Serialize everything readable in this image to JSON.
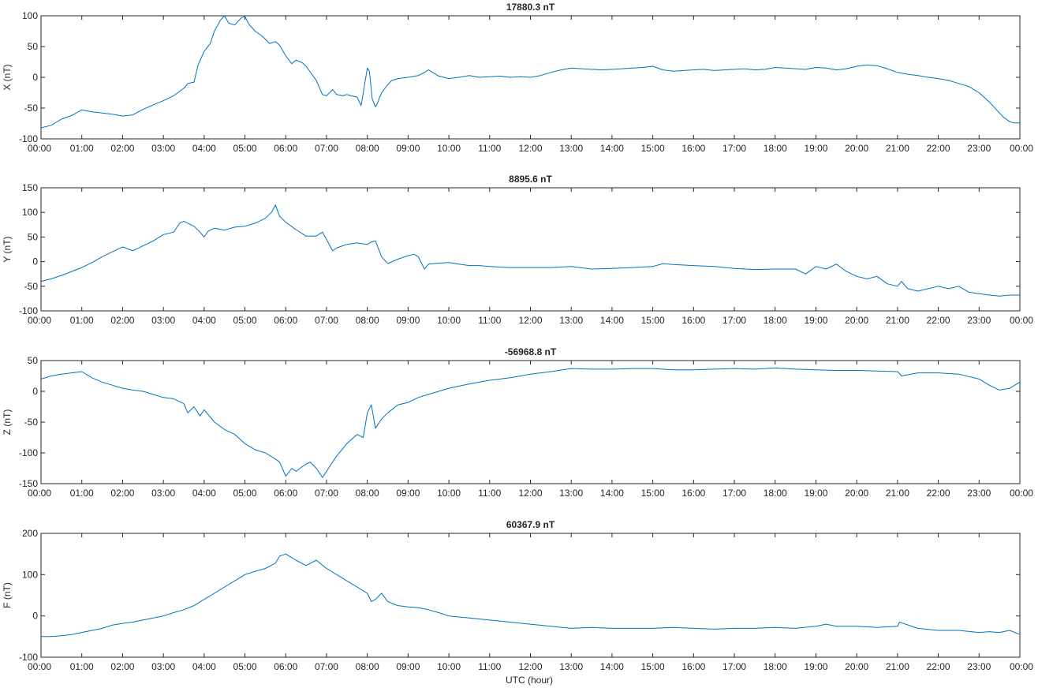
{
  "figure": {
    "xlabel": "UTC (hour)"
  },
  "colors": {
    "series": "#0072bd",
    "axes": "#262626",
    "background": "#ffffff"
  },
  "chart_data": [
    {
      "type": "line",
      "title": "17880.3 nT",
      "ylabel": "X (nT)",
      "xlabel": "",
      "xlim": [
        0,
        24
      ],
      "ylim": [
        -100,
        100
      ],
      "yticks": [
        -100,
        -50,
        0,
        50,
        100
      ],
      "xtick_labels": [
        "00:00",
        "01:00",
        "02:00",
        "03:00",
        "04:00",
        "05:00",
        "06:00",
        "07:00",
        "08:00",
        "09:00",
        "10:00",
        "11:00",
        "12:00",
        "13:00",
        "14:00",
        "15:00",
        "16:00",
        "17:00",
        "18:00",
        "19:00",
        "20:00",
        "21:00",
        "22:00",
        "23:00",
        "00:00"
      ],
      "grid": false,
      "series": [
        {
          "x": [
            0,
            0.25,
            0.5,
            0.75,
            1,
            1.25,
            1.5,
            1.75,
            2,
            2.25,
            2.5,
            2.75,
            3,
            3.25,
            3.5,
            3.6,
            3.75,
            3.85,
            4,
            4.15,
            4.25,
            4.4,
            4.5,
            4.6,
            4.75,
            4.9,
            5,
            5.1,
            5.25,
            5.4,
            5.5,
            5.6,
            5.75,
            5.85,
            6,
            6.15,
            6.25,
            6.4,
            6.5,
            6.75,
            6.9,
            7,
            7.15,
            7.25,
            7.4,
            7.5,
            7.6,
            7.75,
            7.85,
            7.95,
            8,
            8.05,
            8.12,
            8.2,
            8.25,
            8.35,
            8.5,
            8.6,
            8.75,
            9,
            9.25,
            9.4,
            9.5,
            9.75,
            10,
            10.25,
            10.5,
            10.75,
            11,
            11.25,
            11.5,
            11.75,
            12,
            12.25,
            12.5,
            12.75,
            13,
            13.25,
            13.5,
            13.75,
            14,
            14.25,
            14.5,
            14.75,
            15,
            15.25,
            15.5,
            15.75,
            16,
            16.25,
            16.5,
            16.75,
            17,
            17.25,
            17.5,
            17.75,
            18,
            18.25,
            18.5,
            18.75,
            19,
            19.25,
            19.5,
            19.75,
            20,
            20.25,
            20.5,
            20.75,
            21,
            21.25,
            21.5,
            21.75,
            22,
            22.25,
            22.5,
            22.75,
            23,
            23.25,
            23.5,
            23.6,
            23.75,
            23.85,
            24
          ],
          "y": [
            -82,
            -78,
            -68,
            -62,
            -53,
            -56,
            -58,
            -60,
            -63,
            -61,
            -52,
            -45,
            -38,
            -30,
            -18,
            -10,
            -8,
            20,
            42,
            55,
            75,
            93,
            100,
            88,
            85,
            96,
            99,
            86,
            75,
            68,
            62,
            55,
            58,
            52,
            35,
            22,
            28,
            24,
            18,
            -5,
            -28,
            -30,
            -20,
            -28,
            -30,
            -28,
            -30,
            -32,
            -46,
            -5,
            15,
            10,
            -35,
            -48,
            -42,
            -25,
            -12,
            -5,
            -2,
            0,
            3,
            8,
            12,
            2,
            -2,
            0,
            3,
            0,
            1,
            2,
            0,
            1,
            0,
            3,
            8,
            12,
            15,
            14,
            13,
            12,
            13,
            14,
            15,
            16,
            18,
            12,
            10,
            11,
            12,
            13,
            11,
            12,
            13,
            14,
            12,
            13,
            16,
            15,
            14,
            13,
            16,
            15,
            12,
            14,
            18,
            20,
            19,
            14,
            8,
            5,
            3,
            0,
            -2,
            -5,
            -10,
            -15,
            -25,
            -40,
            -58,
            -65,
            -72,
            -74,
            -74
          ]
        }
      ]
    },
    {
      "type": "line",
      "title": "8895.6 nT",
      "ylabel": "Y (nT)",
      "xlabel": "",
      "xlim": [
        0,
        24
      ],
      "ylim": [
        -100,
        150
      ],
      "yticks": [
        -100,
        -50,
        0,
        50,
        100,
        150
      ],
      "xtick_labels": [
        "00:00",
        "01:00",
        "02:00",
        "03:00",
        "04:00",
        "05:00",
        "06:00",
        "07:00",
        "08:00",
        "09:00",
        "10:00",
        "11:00",
        "12:00",
        "13:00",
        "14:00",
        "15:00",
        "16:00",
        "17:00",
        "18:00",
        "19:00",
        "20:00",
        "21:00",
        "22:00",
        "23:00",
        "00:00"
      ],
      "grid": false,
      "series": [
        {
          "x": [
            0,
            0.25,
            0.5,
            0.75,
            1,
            1.25,
            1.5,
            1.75,
            2,
            2.25,
            2.5,
            2.75,
            3,
            3.25,
            3.4,
            3.5,
            3.75,
            3.9,
            4,
            4.1,
            4.25,
            4.5,
            4.75,
            5,
            5.25,
            5.5,
            5.65,
            5.75,
            5.85,
            6,
            6.25,
            6.5,
            6.75,
            6.9,
            7,
            7.15,
            7.25,
            7.5,
            7.75,
            8,
            8.1,
            8.2,
            8.35,
            8.5,
            8.75,
            9,
            9.15,
            9.25,
            9.4,
            9.5,
            9.75,
            10,
            10.25,
            10.5,
            10.75,
            11,
            11.5,
            12,
            12.5,
            13,
            13.5,
            14,
            14.5,
            15,
            15.25,
            15.5,
            16,
            16.5,
            17,
            17.5,
            18,
            18.5,
            18.75,
            19,
            19.25,
            19.5,
            19.75,
            20,
            20.25,
            20.5,
            20.75,
            21,
            21.1,
            21.25,
            21.5,
            22,
            22.25,
            22.5,
            22.75,
            23,
            23.25,
            23.5,
            23.75,
            24
          ],
          "y": [
            -40,
            -35,
            -28,
            -20,
            -12,
            -2,
            10,
            20,
            30,
            22,
            32,
            42,
            55,
            60,
            78,
            82,
            72,
            60,
            50,
            62,
            68,
            64,
            70,
            72,
            78,
            88,
            100,
            115,
            92,
            80,
            65,
            52,
            52,
            60,
            45,
            22,
            28,
            35,
            38,
            35,
            40,
            42,
            10,
            -4,
            5,
            12,
            15,
            10,
            -15,
            -5,
            -3,
            -2,
            -5,
            -8,
            -8,
            -10,
            -12,
            -12,
            -12,
            -10,
            -15,
            -14,
            -12,
            -10,
            -4,
            -6,
            -8,
            -10,
            -14,
            -16,
            -15,
            -15,
            -25,
            -10,
            -15,
            -5,
            -20,
            -30,
            -35,
            -30,
            -45,
            -50,
            -40,
            -55,
            -60,
            -50,
            -55,
            -50,
            -62,
            -65,
            -68,
            -70,
            -68,
            -68
          ]
        }
      ]
    },
    {
      "type": "line",
      "title": "-56968.8 nT",
      "ylabel": "Z (nT)",
      "xlabel": "",
      "xlim": [
        0,
        24
      ],
      "ylim": [
        -150,
        50
      ],
      "yticks": [
        -150,
        -100,
        -50,
        0,
        50
      ],
      "xtick_labels": [
        "00:00",
        "01:00",
        "02:00",
        "03:00",
        "04:00",
        "05:00",
        "06:00",
        "07:00",
        "08:00",
        "09:00",
        "10:00",
        "11:00",
        "12:00",
        "13:00",
        "14:00",
        "15:00",
        "16:00",
        "17:00",
        "18:00",
        "19:00",
        "20:00",
        "21:00",
        "22:00",
        "23:00",
        "00:00"
      ],
      "grid": false,
      "series": [
        {
          "x": [
            0,
            0.25,
            0.5,
            0.75,
            1,
            1.25,
            1.5,
            1.75,
            2,
            2.25,
            2.5,
            2.75,
            3,
            3.25,
            3.5,
            3.6,
            3.75,
            3.9,
            4,
            4.25,
            4.5,
            4.75,
            5,
            5.25,
            5.5,
            5.75,
            5.85,
            6,
            6.15,
            6.25,
            6.5,
            6.6,
            6.75,
            6.9,
            7,
            7.15,
            7.25,
            7.5,
            7.75,
            7.9,
            8,
            8.1,
            8.2,
            8.35,
            8.5,
            8.75,
            9,
            9.25,
            9.5,
            9.75,
            10,
            10.5,
            11,
            11.5,
            12,
            12.5,
            13,
            13.5,
            14,
            14.5,
            15,
            15.5,
            16,
            16.5,
            17,
            17.5,
            18,
            18.5,
            19,
            19.5,
            20,
            20.5,
            21,
            21.1,
            21.5,
            22,
            22.5,
            23,
            23.25,
            23.5,
            23.75,
            24
          ],
          "y": [
            20,
            25,
            28,
            30,
            32,
            22,
            15,
            10,
            5,
            2,
            0,
            -5,
            -10,
            -12,
            -20,
            -35,
            -25,
            -40,
            -30,
            -50,
            -62,
            -70,
            -85,
            -95,
            -100,
            -110,
            -115,
            -138,
            -125,
            -130,
            -118,
            -115,
            -125,
            -140,
            -130,
            -115,
            -105,
            -85,
            -70,
            -75,
            -35,
            -22,
            -60,
            -45,
            -35,
            -22,
            -18,
            -10,
            -5,
            0,
            5,
            12,
            18,
            22,
            28,
            32,
            37,
            36,
            36,
            37,
            37,
            35,
            35,
            36,
            37,
            36,
            38,
            36,
            35,
            34,
            34,
            33,
            32,
            25,
            30,
            30,
            28,
            20,
            10,
            2,
            5,
            15
          ]
        }
      ]
    },
    {
      "type": "line",
      "title": "60367.9 nT",
      "ylabel": "F (nT)",
      "xlabel": "UTC (hour)",
      "xlim": [
        0,
        24
      ],
      "ylim": [
        -100,
        200
      ],
      "yticks": [
        -100,
        0,
        100,
        200
      ],
      "xtick_labels": [
        "00:00",
        "01:00",
        "02:00",
        "03:00",
        "04:00",
        "05:00",
        "06:00",
        "07:00",
        "08:00",
        "09:00",
        "10:00",
        "11:00",
        "12:00",
        "13:00",
        "14:00",
        "15:00",
        "16:00",
        "17:00",
        "18:00",
        "19:00",
        "20:00",
        "21:00",
        "22:00",
        "23:00",
        "00:00"
      ],
      "grid": false,
      "series": [
        {
          "x": [
            0,
            0.25,
            0.5,
            0.75,
            1,
            1.25,
            1.5,
            1.75,
            2,
            2.25,
            2.5,
            2.75,
            3,
            3.25,
            3.5,
            3.75,
            4,
            4.25,
            4.5,
            4.75,
            5,
            5.25,
            5.5,
            5.75,
            5.85,
            6,
            6.25,
            6.5,
            6.75,
            7,
            7.25,
            7.5,
            7.75,
            8,
            8.1,
            8.2,
            8.35,
            8.5,
            8.75,
            9,
            9.25,
            9.5,
            9.75,
            10,
            10.5,
            11,
            11.5,
            12,
            12.5,
            13,
            13.5,
            14,
            14.5,
            15,
            15.5,
            16,
            16.5,
            17,
            17.5,
            18,
            18.5,
            19,
            19.25,
            19.5,
            20,
            20.5,
            21,
            21.05,
            21.5,
            22,
            22.5,
            23,
            23.25,
            23.5,
            23.75,
            24
          ],
          "y": [
            -50,
            -50,
            -48,
            -45,
            -40,
            -35,
            -30,
            -22,
            -18,
            -15,
            -10,
            -5,
            0,
            8,
            15,
            25,
            40,
            55,
            70,
            85,
            100,
            108,
            115,
            128,
            145,
            150,
            135,
            122,
            135,
            115,
            100,
            85,
            70,
            55,
            35,
            40,
            55,
            35,
            25,
            22,
            20,
            15,
            8,
            0,
            -5,
            -10,
            -15,
            -20,
            -25,
            -30,
            -28,
            -30,
            -30,
            -30,
            -28,
            -30,
            -32,
            -30,
            -30,
            -28,
            -30,
            -25,
            -20,
            -25,
            -25,
            -28,
            -25,
            -15,
            -30,
            -35,
            -35,
            -40,
            -38,
            -40,
            -35,
            -45
          ]
        }
      ]
    }
  ]
}
